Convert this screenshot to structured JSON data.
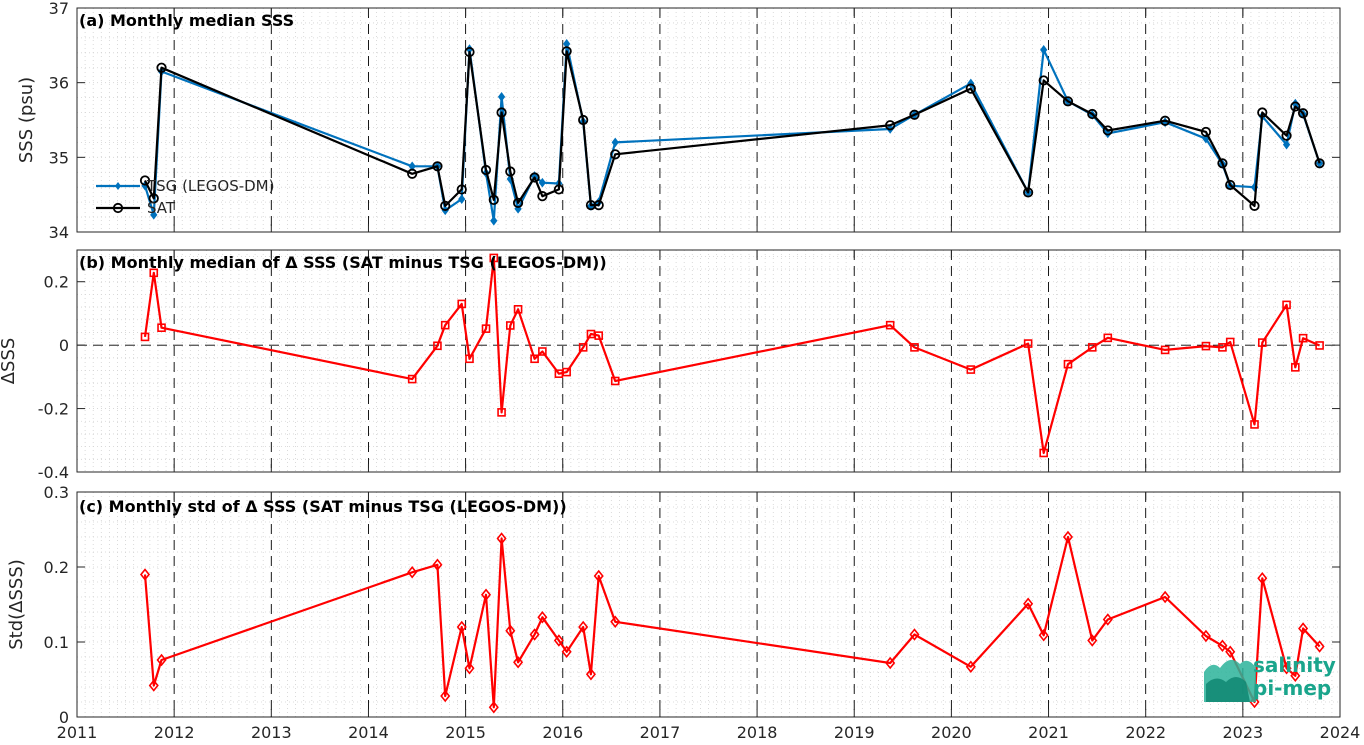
{
  "chart_data": [
    {
      "id": "a",
      "type": "line",
      "title": "(a) Monthly median SSS",
      "ylabel": "SSS (psu)",
      "xlim": [
        2011,
        2024
      ],
      "ylim": [
        34,
        37
      ],
      "yticks": [
        34,
        35,
        36,
        37
      ],
      "grid": true,
      "legend_placement": "left",
      "series": [
        {
          "name": "TSG (LEGOS-DM)",
          "color": "#0072BD",
          "marker": "dot",
          "x": [
            2011.7,
            2011.79,
            2011.87,
            2014.45,
            2014.71,
            2014.79,
            2014.96,
            2015.04,
            2015.21,
            2015.29,
            2015.37,
            2015.46,
            2015.54,
            2015.71,
            2015.79,
            2015.96,
            2016.04,
            2016.21,
            2016.29,
            2016.37,
            2016.54,
            2019.37,
            2019.62,
            2020.2,
            2020.79,
            2020.95,
            2021.2,
            2021.45,
            2021.61,
            2022.2,
            2022.62,
            2022.79,
            2022.87,
            2023.12,
            2023.2,
            2023.45,
            2023.54,
            2023.62,
            2023.79
          ],
          "y": [
            34.62,
            34.23,
            36.15,
            34.88,
            34.88,
            34.29,
            34.44,
            36.45,
            34.79,
            34.15,
            35.81,
            34.71,
            34.31,
            34.75,
            34.66,
            34.65,
            36.52,
            35.48,
            34.35,
            34.4,
            35.2,
            35.38,
            35.57,
            35.99,
            34.53,
            36.44,
            35.75,
            35.57,
            35.32,
            35.47,
            35.25,
            34.91,
            34.62,
            34.6,
            35.55,
            35.17,
            35.72,
            35.58,
            34.92
          ]
        },
        {
          "name": "SAT",
          "color": "#000000",
          "marker": "circle",
          "x": [
            2011.7,
            2011.79,
            2011.87,
            2014.45,
            2014.71,
            2014.79,
            2014.96,
            2015.04,
            2015.21,
            2015.29,
            2015.37,
            2015.46,
            2015.54,
            2015.71,
            2015.79,
            2015.96,
            2016.04,
            2016.21,
            2016.29,
            2016.37,
            2016.54,
            2019.37,
            2019.62,
            2020.2,
            2020.79,
            2020.95,
            2021.2,
            2021.45,
            2021.61,
            2022.2,
            2022.62,
            2022.79,
            2022.87,
            2023.12,
            2023.2,
            2023.45,
            2023.54,
            2023.62,
            2023.79
          ],
          "y": [
            34.69,
            34.45,
            36.2,
            34.78,
            34.88,
            34.35,
            34.57,
            36.41,
            34.83,
            34.43,
            35.6,
            34.81,
            34.39,
            34.73,
            34.48,
            34.57,
            36.42,
            35.5,
            34.36,
            34.36,
            35.04,
            35.43,
            35.57,
            35.92,
            34.53,
            36.03,
            35.75,
            35.58,
            35.36,
            35.49,
            35.34,
            34.92,
            34.63,
            34.35,
            35.6,
            35.29,
            35.68,
            35.59,
            34.92
          ]
        }
      ]
    },
    {
      "id": "b",
      "type": "line",
      "title": "(b) Monthly median of Δ SSS (SAT minus TSG (LEGOS-DM))",
      "ylabel": "ΔSSS",
      "xlim": [
        2011,
        2024
      ],
      "ylim": [
        -0.4,
        0.3
      ],
      "yticks": [
        -0.4,
        -0.2,
        0,
        0.2
      ],
      "ytick_labels": [
        "-0.4",
        "-0.2",
        "0",
        "0.2"
      ],
      "zero_line": true,
      "grid": true,
      "series": [
        {
          "name": "",
          "color": "#FF0000",
          "marker": "square",
          "x": [
            2011.7,
            2011.79,
            2011.87,
            2014.45,
            2014.71,
            2014.79,
            2014.96,
            2015.04,
            2015.21,
            2015.29,
            2015.37,
            2015.46,
            2015.54,
            2015.71,
            2015.79,
            2015.96,
            2016.04,
            2016.21,
            2016.29,
            2016.37,
            2016.54,
            2019.37,
            2019.62,
            2020.2,
            2020.79,
            2020.95,
            2021.2,
            2021.45,
            2021.61,
            2022.2,
            2022.62,
            2022.79,
            2022.87,
            2023.12,
            2023.2,
            2023.45,
            2023.54,
            2023.62,
            2023.79
          ],
          "y": [
            0.026,
            0.228,
            0.055,
            -0.107,
            -0.002,
            0.063,
            0.13,
            -0.043,
            0.052,
            0.275,
            -0.212,
            0.062,
            0.113,
            -0.043,
            -0.02,
            -0.09,
            -0.085,
            -0.007,
            0.035,
            0.03,
            -0.113,
            0.063,
            -0.007,
            -0.077,
            0.005,
            -0.34,
            -0.06,
            -0.007,
            0.023,
            -0.015,
            -0.003,
            -0.007,
            0.01,
            -0.25,
            0.008,
            0.127,
            -0.07,
            0.022,
            -0.001
          ]
        }
      ]
    },
    {
      "id": "c",
      "type": "line",
      "title": "(c) Monthly std of Δ SSS (SAT minus TSG (LEGOS-DM))",
      "ylabel": "Std(ΔSSS)",
      "xlim": [
        2011,
        2024
      ],
      "ylim": [
        0,
        0.3
      ],
      "yticks": [
        0,
        0.1,
        0.2,
        0.3
      ],
      "ytick_labels": [
        "0",
        "0.1",
        "0.2",
        "0.3"
      ],
      "xticks": [
        2011,
        2012,
        2013,
        2014,
        2015,
        2016,
        2017,
        2018,
        2019,
        2020,
        2021,
        2022,
        2023,
        2024
      ],
      "grid": true,
      "series": [
        {
          "name": "",
          "color": "#FF0000",
          "marker": "diamond",
          "x": [
            2011.7,
            2011.79,
            2011.87,
            2014.45,
            2014.71,
            2014.79,
            2014.96,
            2015.04,
            2015.21,
            2015.29,
            2015.37,
            2015.46,
            2015.54,
            2015.71,
            2015.79,
            2015.96,
            2016.04,
            2016.21,
            2016.29,
            2016.37,
            2016.54,
            2019.37,
            2019.62,
            2020.2,
            2020.79,
            2020.95,
            2021.2,
            2021.45,
            2021.61,
            2022.2,
            2022.62,
            2022.79,
            2022.87,
            2023.12,
            2023.2,
            2023.45,
            2023.54,
            2023.62,
            2023.79
          ],
          "y": [
            0.19,
            0.042,
            0.076,
            0.193,
            0.203,
            0.028,
            0.12,
            0.065,
            0.163,
            0.013,
            0.238,
            0.115,
            0.073,
            0.11,
            0.133,
            0.102,
            0.087,
            0.12,
            0.057,
            0.188,
            0.127,
            0.072,
            0.11,
            0.067,
            0.151,
            0.109,
            0.24,
            0.102,
            0.13,
            0.16,
            0.108,
            0.095,
            0.087,
            0.02,
            0.185,
            0.065,
            0.055,
            0.118,
            0.094
          ]
        }
      ]
    }
  ],
  "logo": {
    "line1": "salinity",
    "line2": "pi-mep",
    "color": "#1aa58c"
  }
}
